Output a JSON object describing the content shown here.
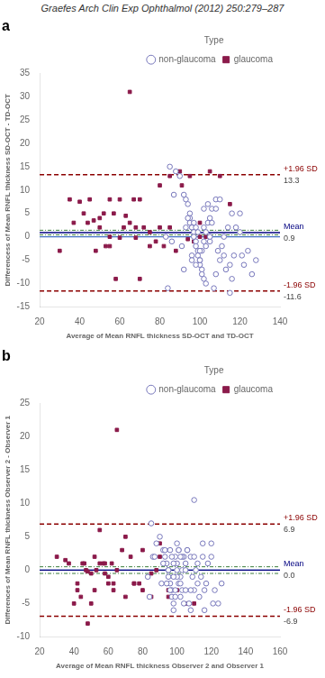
{
  "title": "Graefes Arch Clin Exp Ophthalmol (2012) 250:279–287",
  "chart_data": [
    {
      "type": "scatter",
      "title": "a",
      "xlabel": "Average of Mean RNFL thickness SD-OCT and TD-OCT",
      "ylabel": "Differencess of Mean RNFL thickness SD-OCT - TD-OCT",
      "xlim": [
        20,
        140
      ],
      "ylim": [
        -15,
        35
      ],
      "xticks": [
        20,
        40,
        60,
        80,
        100,
        120,
        140
      ],
      "yticks": [
        -15,
        -10,
        -5,
        0,
        5,
        10,
        15,
        20,
        25,
        30,
        35
      ],
      "grid": false,
      "legend": "upper right",
      "legend_title": "Type",
      "series": [
        {
          "name": "non-glaucoma",
          "color": "#7777BB",
          "marker": "open_circle",
          "x": [
            85,
            88,
            90,
            92,
            93,
            94,
            95,
            95,
            96,
            97,
            97,
            98,
            98,
            99,
            99,
            100,
            100,
            101,
            101,
            102,
            102,
            103,
            103,
            104,
            105,
            106,
            107,
            108,
            109,
            110,
            111,
            112,
            113,
            115,
            116,
            117,
            118,
            120,
            122,
            124,
            126,
            128,
            83,
            86,
            91,
            93,
            95,
            96,
            97,
            98,
            99,
            100,
            101,
            102,
            103,
            104,
            105,
            106,
            108,
            110,
            112,
            114,
            116,
            120,
            84,
            87,
            92,
            94,
            96,
            98,
            100,
            102,
            105,
            108,
            115,
            121
          ],
          "values": [
            15,
            14,
            13,
            9,
            8,
            7,
            5,
            3,
            2,
            1,
            0,
            -1,
            -2,
            -3,
            -4,
            -5,
            -6,
            -7,
            -8,
            2,
            -9,
            1,
            -10,
            3,
            4,
            6,
            -11,
            8,
            -3,
            -5,
            -2,
            0,
            -7,
            -12,
            5,
            -4,
            2,
            1,
            -6,
            -3,
            -8,
            -5,
            0,
            -1,
            -2,
            2,
            4,
            -4,
            3,
            -6,
            1,
            -5,
            -3,
            6,
            -2,
            7,
            -1,
            3,
            -8,
            8,
            -4,
            2,
            -9,
            5,
            -11,
            9,
            -7,
            4,
            -5,
            2,
            -3,
            -1,
            0,
            6,
            -6,
            -4
          ]
        },
        {
          "name": "glaucoma",
          "color": "#8B1A4A",
          "marker": "square",
          "x": [
            30,
            35,
            37,
            40,
            42,
            44,
            45,
            47,
            48,
            50,
            52,
            53,
            55,
            57,
            58,
            60,
            62,
            63,
            65,
            67,
            68,
            70,
            72,
            75,
            78,
            80,
            82,
            85,
            88,
            91,
            94,
            97,
            100,
            103,
            50,
            55,
            60,
            65,
            68,
            70,
            75,
            80,
            85,
            90,
            95,
            100,
            105,
            110,
            115,
            55
          ],
          "values": [
            -3,
            8,
            3,
            7.5,
            5,
            3,
            8,
            3.5,
            -3,
            2,
            5,
            -2,
            8,
            5,
            -9,
            8,
            2,
            4.5,
            31,
            8,
            -0.2,
            -9,
            2,
            1,
            -1,
            2,
            -2,
            2,
            -3,
            11,
            -0.5,
            -1,
            3,
            0,
            4,
            -2,
            -0.2,
            3,
            2,
            8,
            -2,
            11,
            13,
            14,
            13,
            0,
            14,
            13,
            7,
            0
          ]
        }
      ],
      "lines": [
        {
          "value": 0,
          "color": "#4472C4",
          "line_style": "solid"
        },
        {
          "value": 1.4,
          "color": "#3A7D3A",
          "line_style": "dashdot"
        },
        {
          "value": 0.4,
          "color": "#3A7D3A",
          "line_style": "dashdot"
        },
        {
          "value": 0.9,
          "color": "#000080",
          "line_style": "solid",
          "name": "Mean",
          "label": "0.9"
        },
        {
          "value": 13.3,
          "color": "#8B0000",
          "line_style": "dashed",
          "name": "+1.96 SD",
          "label": "13.3"
        },
        {
          "value": -11.6,
          "color": "#8B0000",
          "line_style": "dashed",
          "name": "-1.96 SD",
          "label": "-11.6"
        }
      ]
    },
    {
      "type": "scatter",
      "title": "b",
      "xlabel": "Average of Mean RNFL thickness Observer 2 and Observer 1",
      "ylabel": "Differences of Mean RNFL thickness Observer 2 - Observer 1",
      "xlim": [
        20,
        160
      ],
      "ylim": [
        -10,
        25
      ],
      "xticks": [
        20,
        40,
        60,
        80,
        100,
        120,
        140,
        160
      ],
      "yticks": [
        -10,
        -5,
        0,
        5,
        10,
        15,
        20,
        25
      ],
      "grid": false,
      "legend": "upper right",
      "legend_title": "Type",
      "series": [
        {
          "name": "non-glaucoma",
          "color": "#7777BB",
          "marker": "open_circle",
          "x": [
            85,
            88,
            90,
            92,
            93,
            94,
            95,
            95,
            96,
            97,
            97,
            98,
            98,
            99,
            99,
            100,
            100,
            101,
            101,
            102,
            102,
            103,
            103,
            104,
            105,
            106,
            107,
            108,
            109,
            110,
            111,
            112,
            113,
            115,
            116,
            117,
            118,
            120,
            122,
            124,
            126,
            83,
            86,
            91,
            93,
            95,
            96,
            97,
            98,
            99,
            100,
            101,
            102,
            103,
            104,
            105,
            106,
            108,
            110,
            112,
            114,
            116,
            120,
            84,
            87,
            92,
            94,
            96,
            98,
            100,
            102,
            105,
            108,
            115,
            121,
            110
          ],
          "values": [
            7,
            4,
            5,
            3,
            2,
            1,
            0,
            -1,
            -2,
            -3,
            -4,
            -5,
            -6,
            2,
            -3,
            1,
            4,
            -2,
            3,
            -1,
            -4,
            0,
            -3,
            2,
            1,
            3,
            -5,
            2,
            -1,
            -3,
            0,
            -2,
            -4,
            4,
            -6,
            -2,
            1,
            2,
            -3,
            -5,
            -2,
            -1,
            2,
            -2,
            3,
            0,
            -3,
            2,
            1,
            -4,
            -1,
            3,
            -2,
            2,
            -5,
            0,
            3,
            -3,
            2,
            1,
            -1,
            -3,
            4,
            -4,
            2,
            1,
            -2,
            3,
            -1,
            0,
            2,
            -3,
            -6,
            2,
            -5,
            10.5
          ]
        },
        {
          "name": "glaucoma",
          "color": "#8B1A4A",
          "marker": "square",
          "x": [
            30,
            35,
            37,
            40,
            42,
            44,
            45,
            47,
            48,
            50,
            52,
            53,
            55,
            57,
            58,
            60,
            62,
            63,
            65,
            70,
            75,
            80,
            85,
            90,
            95,
            100,
            105,
            110,
            42,
            46,
            50,
            55,
            60,
            65,
            70,
            75,
            80,
            85,
            90,
            95,
            100,
            48,
            52,
            58,
            63,
            68,
            73,
            78,
            83,
            88
          ],
          "values": [
            2,
            1.5,
            1,
            -5,
            -2,
            -4,
            1,
            0,
            -8,
            -5,
            -3,
            0,
            6,
            1,
            -0.5,
            -2,
            1,
            -2,
            21,
            -4,
            -2,
            -3,
            -4,
            2,
            -4,
            1,
            -5,
            -5,
            -3,
            1,
            -0.5,
            1,
            -1,
            0,
            5,
            -2,
            3,
            -0.5,
            4,
            -3,
            -3,
            -0.2,
            2,
            1,
            -3,
            3,
            2,
            -2,
            -1,
            0
          ]
        }
      ],
      "lines": [
        {
          "value": 0,
          "color": "#4472C4",
          "line_style": "solid"
        },
        {
          "value": 0.5,
          "color": "#3A7D3A",
          "line_style": "dashdot"
        },
        {
          "value": -0.5,
          "color": "#3A7D3A",
          "line_style": "dashdot"
        },
        {
          "value": 0.0,
          "color": "#000080",
          "line_style": "solid",
          "name": "Mean",
          "label": "0.0"
        },
        {
          "value": 6.9,
          "color": "#8B0000",
          "line_style": "dashed",
          "name": "+1.96 SD",
          "label": "6.9"
        },
        {
          "value": -6.9,
          "color": "#8B0000",
          "line_style": "dashed",
          "name": "-1.96 SD",
          "label": "-6.9"
        }
      ]
    }
  ]
}
